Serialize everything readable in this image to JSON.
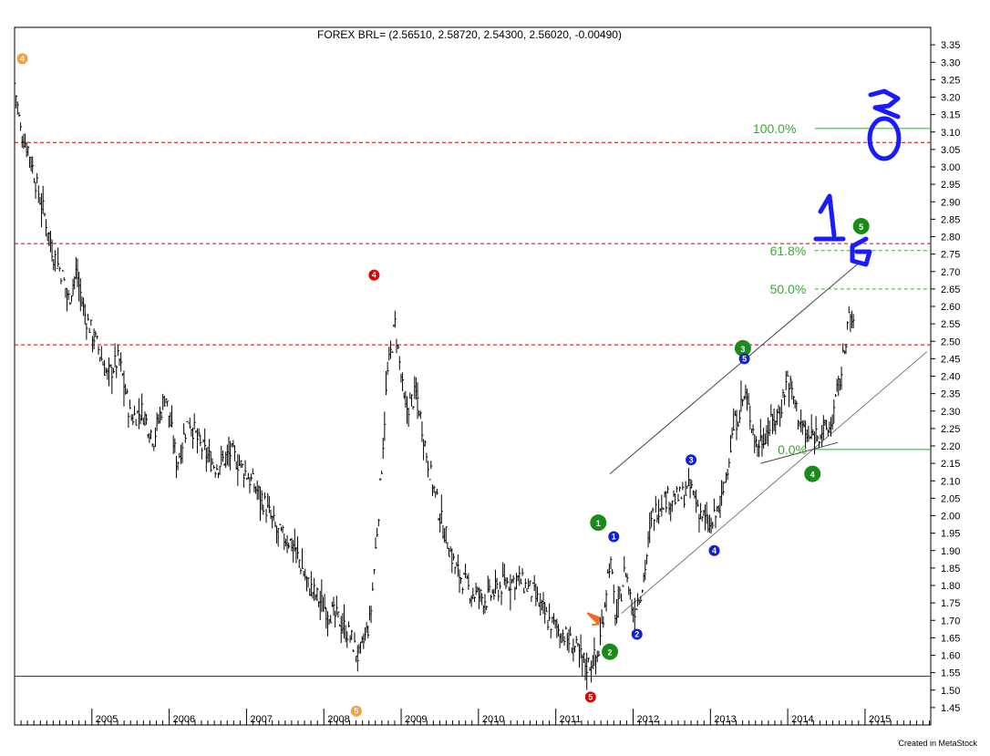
{
  "chart_data": {
    "type": "bar",
    "title": "FOREX BRL= (2.56510, 2.58720, 2.54300, 2.56020, -0.00490)",
    "credit": "Created in MetaStock",
    "ylim": [
      1.4,
      3.4
    ],
    "xlim": [
      2004.0,
      2015.85
    ],
    "y_ticks": [
      1.45,
      1.5,
      1.55,
      1.6,
      1.65,
      1.7,
      1.75,
      1.8,
      1.85,
      1.9,
      1.95,
      2.0,
      2.05,
      2.1,
      2.15,
      2.2,
      2.25,
      2.3,
      2.35,
      2.4,
      2.45,
      2.5,
      2.55,
      2.6,
      2.65,
      2.7,
      2.75,
      2.8,
      2.85,
      2.9,
      2.95,
      3.0,
      3.05,
      3.1,
      3.15,
      3.2,
      3.25,
      3.3,
      3.35
    ],
    "y_tick_labels": [
      "1.45",
      "1.50",
      "1.55",
      "1.60",
      "1.65",
      "1.70",
      "1.75",
      "1.80",
      "1.85",
      "1.90",
      "1.95",
      "2.00",
      "2.05",
      "2.10",
      "2.15",
      "2.20",
      "2.25",
      "2.30",
      "2.35",
      "2.40",
      "2.45",
      "2.50",
      "2.55",
      "2.60",
      "2.65",
      "2.70",
      "2.75",
      "2.80",
      "2.85",
      "2.90",
      "2.95",
      "3.00",
      "3.05",
      "3.10",
      "3.15",
      "3.20",
      "3.25",
      "3.30",
      "3.35"
    ],
    "x_tick_labels": [
      "2005",
      "2006",
      "2007",
      "2008",
      "2009",
      "2010",
      "2011",
      "2012",
      "2013",
      "2014",
      "2015"
    ],
    "x_tick_values": [
      2005,
      2006,
      2007,
      2008,
      2009,
      2010,
      2011,
      2012,
      2013,
      2014,
      2015
    ],
    "price_path": [
      [
        2004.0,
        3.24
      ],
      [
        2004.08,
        3.1
      ],
      [
        2004.18,
        3.05
      ],
      [
        2004.28,
        2.95
      ],
      [
        2004.4,
        2.85
      ],
      [
        2004.5,
        2.75
      ],
      [
        2004.6,
        2.7
      ],
      [
        2004.7,
        2.62
      ],
      [
        2004.8,
        2.7
      ],
      [
        2004.9,
        2.58
      ],
      [
        2005.05,
        2.5
      ],
      [
        2005.2,
        2.4
      ],
      [
        2005.35,
        2.45
      ],
      [
        2005.5,
        2.28
      ],
      [
        2005.65,
        2.3
      ],
      [
        2005.8,
        2.22
      ],
      [
        2005.95,
        2.35
      ],
      [
        2006.1,
        2.15
      ],
      [
        2006.25,
        2.28
      ],
      [
        2006.4,
        2.2
      ],
      [
        2006.6,
        2.14
      ],
      [
        2006.8,
        2.18
      ],
      [
        2007.0,
        2.12
      ],
      [
        2007.2,
        2.05
      ],
      [
        2007.4,
        1.95
      ],
      [
        2007.6,
        1.92
      ],
      [
        2007.8,
        1.8
      ],
      [
        2008.0,
        1.74
      ],
      [
        2008.2,
        1.7
      ],
      [
        2008.35,
        1.65
      ],
      [
        2008.45,
        1.59
      ],
      [
        2008.6,
        1.7
      ],
      [
        2008.72,
        2.05
      ],
      [
        2008.82,
        2.4
      ],
      [
        2008.92,
        2.55
      ],
      [
        2009.05,
        2.3
      ],
      [
        2009.2,
        2.35
      ],
      [
        2009.35,
        2.15
      ],
      [
        2009.5,
        2.0
      ],
      [
        2009.7,
        1.85
      ],
      [
        2009.9,
        1.78
      ],
      [
        2010.1,
        1.76
      ],
      [
        2010.3,
        1.8
      ],
      [
        2010.5,
        1.82
      ],
      [
        2010.7,
        1.78
      ],
      [
        2010.9,
        1.7
      ],
      [
        2011.1,
        1.66
      ],
      [
        2011.25,
        1.62
      ],
      [
        2011.4,
        1.57
      ],
      [
        2011.55,
        1.6
      ],
      [
        2011.7,
        1.88
      ],
      [
        2011.78,
        1.7
      ],
      [
        2011.9,
        1.85
      ],
      [
        2012.0,
        1.72
      ],
      [
        2012.12,
        1.8
      ],
      [
        2012.25,
        2.0
      ],
      [
        2012.4,
        2.05
      ],
      [
        2012.6,
        2.05
      ],
      [
        2012.75,
        2.08
      ],
      [
        2012.85,
        2.02
      ],
      [
        2013.0,
        1.96
      ],
      [
        2013.15,
        2.05
      ],
      [
        2013.3,
        2.25
      ],
      [
        2013.45,
        2.35
      ],
      [
        2013.6,
        2.2
      ],
      [
        2013.75,
        2.25
      ],
      [
        2013.9,
        2.3
      ],
      [
        2014.0,
        2.4
      ],
      [
        2014.12,
        2.3
      ],
      [
        2014.25,
        2.22
      ],
      [
        2014.4,
        2.24
      ],
      [
        2014.55,
        2.25
      ],
      [
        2014.7,
        2.42
      ],
      [
        2014.78,
        2.56
      ],
      [
        2014.85,
        2.56
      ]
    ],
    "horizontal_lines": [
      {
        "y": 3.07,
        "style": "dashed",
        "color": "#cc0000"
      },
      {
        "y": 2.78,
        "style": "dashed",
        "color": "#cc0000"
      },
      {
        "y": 2.49,
        "style": "dashed",
        "color": "#cc0000"
      },
      {
        "y": 1.54,
        "style": "solid",
        "color": "#cc0000"
      }
    ],
    "fib_levels": [
      {
        "label": "100.0%",
        "y": 3.11,
        "x_label": 2013.55,
        "line_from": 2014.35,
        "style": "solid"
      },
      {
        "label": "61.8%",
        "y": 2.76,
        "x_label": 2013.77,
        "line_from": 2014.35,
        "style": "dashed"
      },
      {
        "label": "50.0%",
        "y": 2.65,
        "x_label": 2013.77,
        "line_from": 2014.35,
        "style": "dashed"
      },
      {
        "label": "0.0%",
        "y": 2.19,
        "x_label": 2013.87,
        "line_from": 2014.35,
        "style": "solid"
      }
    ],
    "fib_color": "#33aa33",
    "trend_lines": [
      {
        "from": [
          2011.7,
          2.12
        ],
        "to": [
          2014.95,
          2.73
        ],
        "color": "#444444"
      },
      {
        "from": [
          2011.85,
          1.72
        ],
        "to": [
          2015.8,
          2.47
        ],
        "color": "#777777"
      },
      {
        "from": [
          2013.65,
          2.15
        ],
        "to": [
          2014.65,
          2.21
        ],
        "color": "#444444"
      }
    ],
    "wave_labels": [
      {
        "text": "4",
        "x": 2004.1,
        "y": 3.31,
        "color": "#f5a040"
      },
      {
        "text": "5",
        "x": 2008.42,
        "y": 1.44,
        "color": "#f5a040"
      },
      {
        "text": "4",
        "x": 2008.65,
        "y": 2.69,
        "color": "#e00000"
      },
      {
        "text": "5",
        "x": 2011.45,
        "y": 1.48,
        "color": "#e00000"
      },
      {
        "text": "1",
        "x": 2011.55,
        "y": 1.98,
        "color": "#1a8a1a",
        "big": true
      },
      {
        "text": "2",
        "x": 2011.7,
        "y": 1.61,
        "color": "#1a8a1a",
        "big": true
      },
      {
        "text": "3",
        "x": 2013.42,
        "y": 2.48,
        "color": "#1a8a1a",
        "big": true
      },
      {
        "text": "4",
        "x": 2014.32,
        "y": 2.12,
        "color": "#1a8a1a",
        "big": true
      },
      {
        "text": "5",
        "x": 2014.95,
        "y": 2.83,
        "color": "#1a8a1a",
        "big": true
      },
      {
        "text": "1",
        "x": 2011.75,
        "y": 1.94,
        "color": "#1020d0"
      },
      {
        "text": "2",
        "x": 2012.05,
        "y": 1.66,
        "color": "#1020d0"
      },
      {
        "text": "3",
        "x": 2012.75,
        "y": 2.16,
        "color": "#1020d0"
      },
      {
        "text": "4",
        "x": 2013.05,
        "y": 1.9,
        "color": "#1020d0"
      },
      {
        "text": "5",
        "x": 2013.44,
        "y": 2.45,
        "color": "#1020d0"
      }
    ],
    "arrow": {
      "x": 2011.48,
      "y": 1.7,
      "color": "#f06a20"
    }
  }
}
